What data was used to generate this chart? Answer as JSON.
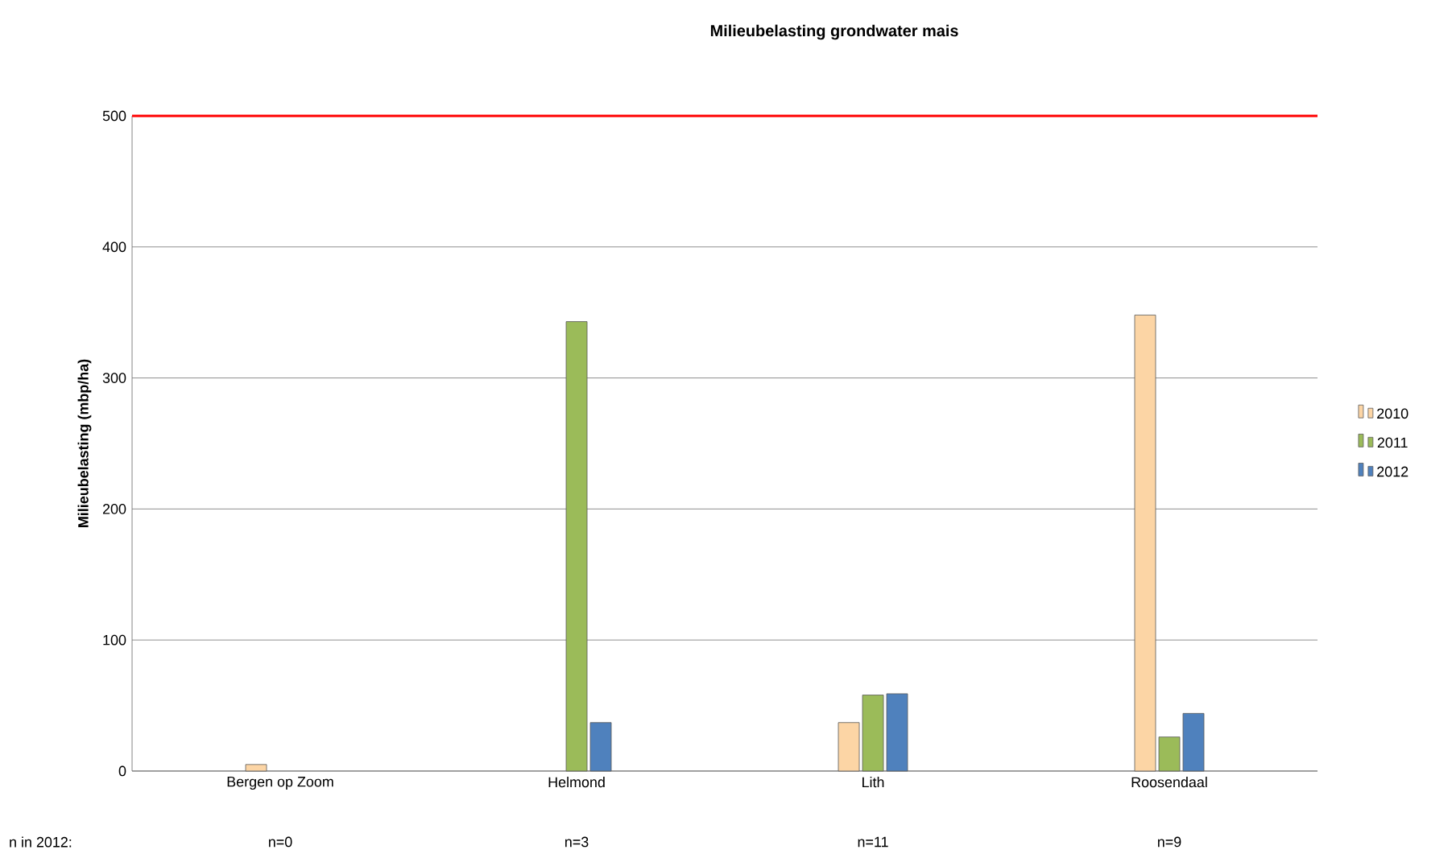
{
  "chart_data": {
    "type": "bar",
    "title": "Milieubelasting grondwater mais",
    "ylabel": "Milieubelasting (mbp/ha)",
    "categories": [
      "Bergen op Zoom",
      "Helmond",
      "Lith",
      "Roosendaal"
    ],
    "series": [
      {
        "name": "2010",
        "color": "#fcd5a5",
        "values": [
          5,
          null,
          37,
          348
        ]
      },
      {
        "name": "2011",
        "color": "#9bbb59",
        "values": [
          null,
          343,
          58,
          26
        ]
      },
      {
        "name": "2012",
        "color": "#4f81bd",
        "values": [
          null,
          37,
          59,
          44
        ]
      }
    ],
    "ylim": [
      0,
      500
    ],
    "yticks": [
      0,
      100,
      200,
      300,
      400,
      500
    ],
    "grid": "y",
    "legend": "right",
    "ref_lines": [
      {
        "axis": "y",
        "value": 500,
        "color": "#ff0000"
      }
    ],
    "annotations": [
      "n in 2012:",
      "n=0",
      "n=3",
      "n=11",
      "n=9"
    ]
  }
}
